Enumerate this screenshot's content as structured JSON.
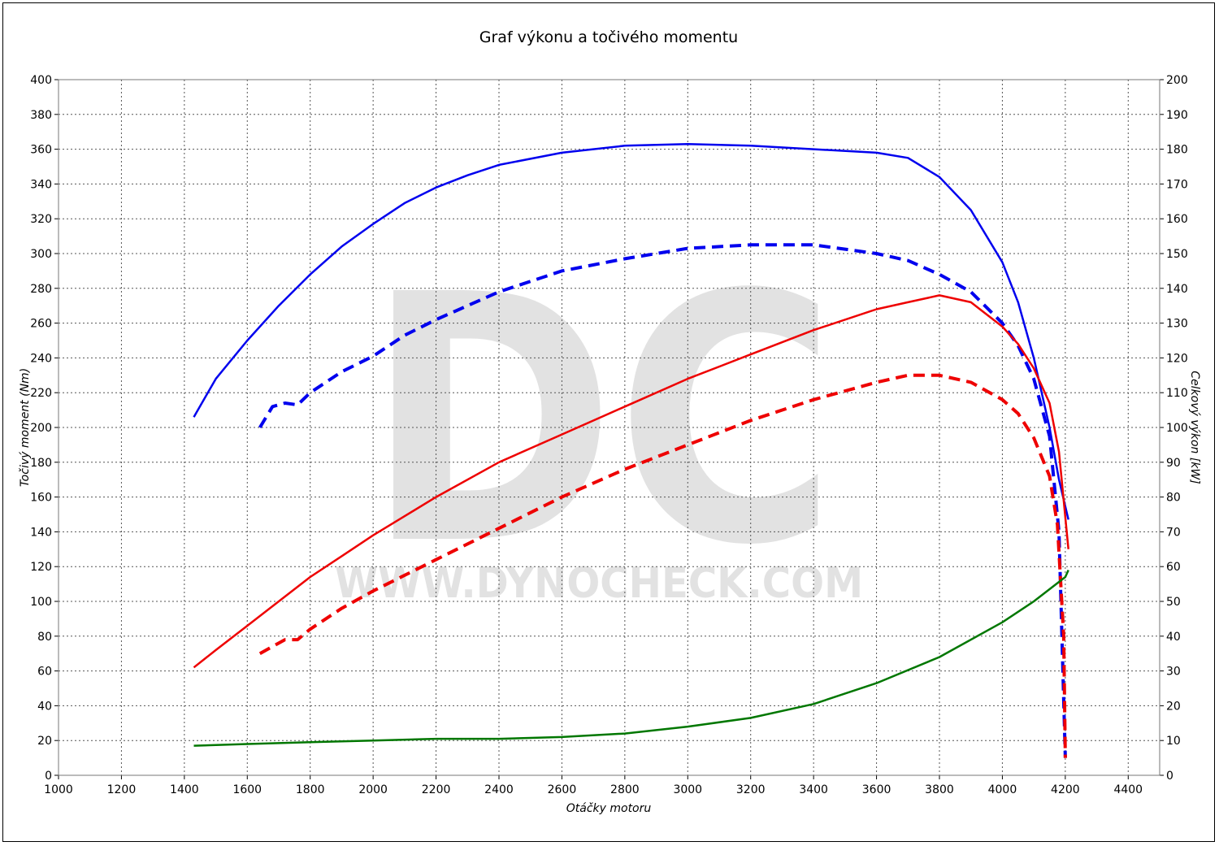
{
  "chart_data": {
    "type": "line",
    "title": "Graf výkonu a točivého momentu",
    "xlabel": "Otáčky motoru",
    "ylabel_left": "Točivý moment (Nm)",
    "ylabel_right": "Celkový výkon [kW]",
    "xlim": [
      1000,
      4500
    ],
    "ylim_left": [
      0,
      400
    ],
    "ylim_right": [
      0,
      200
    ],
    "x_ticks": [
      1000,
      1200,
      1400,
      1600,
      1800,
      2000,
      2200,
      2400,
      2600,
      2800,
      3000,
      3200,
      3400,
      3600,
      3800,
      4000,
      4200,
      4400
    ],
    "y_ticks_left": [
      0,
      20,
      40,
      60,
      80,
      100,
      120,
      140,
      160,
      180,
      200,
      220,
      240,
      260,
      280,
      300,
      320,
      340,
      360,
      380,
      400
    ],
    "y_ticks_right": [
      0,
      10,
      20,
      30,
      40,
      50,
      60,
      70,
      80,
      90,
      100,
      110,
      120,
      130,
      140,
      150,
      160,
      170,
      180,
      190,
      200
    ],
    "grid": true,
    "watermark": {
      "main": "DC",
      "url": "WWW.DYNOCHECK.COM"
    },
    "series": [
      {
        "axis": "left",
        "color": "#0000ee",
        "dash": "solid",
        "points": [
          [
            1430,
            206
          ],
          [
            1500,
            228
          ],
          [
            1600,
            250
          ],
          [
            1700,
            270
          ],
          [
            1800,
            288
          ],
          [
            1900,
            304
          ],
          [
            2000,
            317
          ],
          [
            2100,
            329
          ],
          [
            2200,
            338
          ],
          [
            2300,
            345
          ],
          [
            2400,
            351
          ],
          [
            2600,
            358
          ],
          [
            2800,
            362
          ],
          [
            3000,
            363
          ],
          [
            3200,
            362
          ],
          [
            3400,
            360
          ],
          [
            3600,
            358
          ],
          [
            3700,
            355
          ],
          [
            3800,
            344
          ],
          [
            3900,
            325
          ],
          [
            4000,
            295
          ],
          [
            4050,
            272
          ],
          [
            4100,
            240
          ],
          [
            4150,
            200
          ],
          [
            4180,
            170
          ],
          [
            4210,
            147
          ]
        ]
      },
      {
        "axis": "left",
        "color": "#0000ee",
        "dash": "dashed",
        "points": [
          [
            1640,
            200
          ],
          [
            1680,
            212
          ],
          [
            1720,
            214
          ],
          [
            1760,
            213
          ],
          [
            1800,
            220
          ],
          [
            1900,
            232
          ],
          [
            2000,
            241
          ],
          [
            2100,
            253
          ],
          [
            2200,
            262
          ],
          [
            2300,
            270
          ],
          [
            2400,
            278
          ],
          [
            2600,
            290
          ],
          [
            2800,
            297
          ],
          [
            3000,
            303
          ],
          [
            3200,
            305
          ],
          [
            3400,
            305
          ],
          [
            3600,
            300
          ],
          [
            3700,
            296
          ],
          [
            3800,
            288
          ],
          [
            3900,
            278
          ],
          [
            4000,
            260
          ],
          [
            4050,
            247
          ],
          [
            4100,
            228
          ],
          [
            4150,
            195
          ],
          [
            4180,
            140
          ],
          [
            4200,
            10
          ]
        ]
      },
      {
        "axis": "right",
        "color": "#ee0000",
        "dash": "solid",
        "points": [
          [
            1430,
            31
          ],
          [
            1500,
            36
          ],
          [
            1600,
            43
          ],
          [
            1700,
            50
          ],
          [
            1800,
            57
          ],
          [
            1900,
            63
          ],
          [
            2000,
            69
          ],
          [
            2200,
            80
          ],
          [
            2400,
            90
          ],
          [
            2600,
            98
          ],
          [
            2800,
            106
          ],
          [
            3000,
            114
          ],
          [
            3200,
            121
          ],
          [
            3400,
            128
          ],
          [
            3600,
            134
          ],
          [
            3700,
            136
          ],
          [
            3800,
            138
          ],
          [
            3900,
            136
          ],
          [
            4000,
            129
          ],
          [
            4050,
            124
          ],
          [
            4100,
            117
          ],
          [
            4150,
            107
          ],
          [
            4180,
            93
          ],
          [
            4210,
            65
          ]
        ]
      },
      {
        "axis": "right",
        "color": "#ee0000",
        "dash": "dashed",
        "points": [
          [
            1640,
            35
          ],
          [
            1680,
            37
          ],
          [
            1720,
            39
          ],
          [
            1760,
            39
          ],
          [
            1800,
            42
          ],
          [
            1900,
            48
          ],
          [
            2000,
            53
          ],
          [
            2200,
            62
          ],
          [
            2400,
            71
          ],
          [
            2600,
            80
          ],
          [
            2800,
            88
          ],
          [
            3000,
            95
          ],
          [
            3200,
            102
          ],
          [
            3400,
            108
          ],
          [
            3600,
            113
          ],
          [
            3700,
            115
          ],
          [
            3800,
            115
          ],
          [
            3900,
            113
          ],
          [
            4000,
            108
          ],
          [
            4050,
            104
          ],
          [
            4100,
            97
          ],
          [
            4150,
            86
          ],
          [
            4175,
            72
          ],
          [
            4195,
            40
          ],
          [
            4200,
            5
          ]
        ]
      },
      {
        "axis": "left",
        "color": "#007700",
        "dash": "solid",
        "points": [
          [
            1430,
            17
          ],
          [
            1600,
            18
          ],
          [
            1800,
            19
          ],
          [
            2000,
            20
          ],
          [
            2200,
            21
          ],
          [
            2400,
            21
          ],
          [
            2600,
            22
          ],
          [
            2800,
            24
          ],
          [
            3000,
            28
          ],
          [
            3200,
            33
          ],
          [
            3400,
            41
          ],
          [
            3600,
            53
          ],
          [
            3800,
            68
          ],
          [
            4000,
            88
          ],
          [
            4100,
            100
          ],
          [
            4200,
            114
          ],
          [
            4210,
            118
          ]
        ]
      }
    ]
  }
}
